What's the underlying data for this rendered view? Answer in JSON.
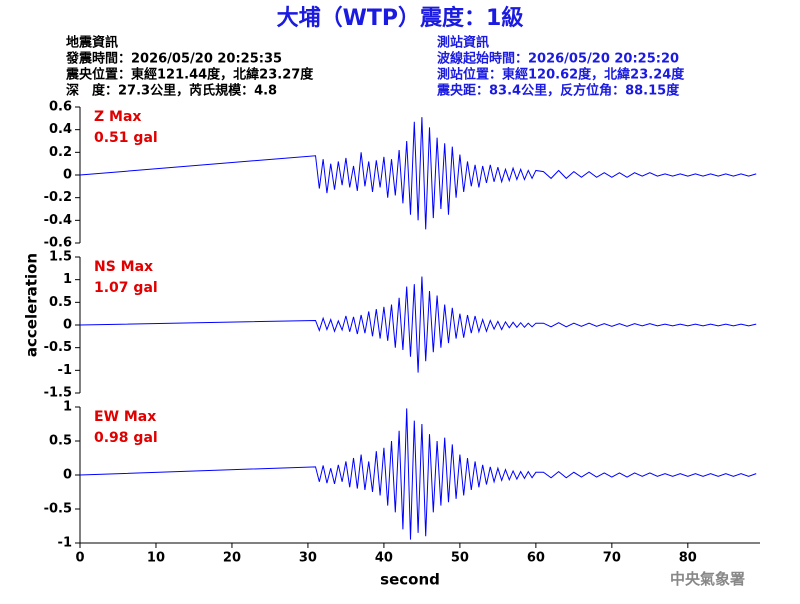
{
  "title": "大埔（WTP）震度：1級",
  "info_left": [
    "地震資訊",
    "發震時間：2026/05/20 20:25:35",
    "震央位置：東經121.44度，北緯23.27度",
    "深　度：27.3公里，芮氏規模：4.8"
  ],
  "info_right": [
    "測站資訊",
    "波線起始時間：2026/05/20 20:25:20",
    "測站位置：東經120.62度，北緯23.24度",
    "震央距：83.4公里，反方位角：88.15度"
  ],
  "footer": "中央氣象署",
  "chart_data": [
    {
      "type": "line",
      "label": "Z Max",
      "max_label": "0.51 gal",
      "color": "#0000ff",
      "label_color": "#e00000",
      "xlim": [
        0,
        89.5
      ],
      "ylim": [
        -0.6,
        0.6
      ],
      "yticks": [
        -0.6,
        -0.4,
        -0.2,
        0,
        0.2,
        0.4,
        0.6
      ],
      "x": [
        0,
        31,
        31.5,
        32,
        32.5,
        33,
        33.5,
        34,
        34.5,
        35,
        35.5,
        36,
        36.5,
        37,
        37.5,
        38,
        38.5,
        39,
        39.5,
        40,
        40.5,
        41,
        41.5,
        42,
        42.5,
        43,
        43.5,
        44,
        44.5,
        45,
        45.5,
        46,
        46.5,
        47,
        47.5,
        48,
        48.5,
        49,
        49.5,
        50,
        50.5,
        51,
        51.5,
        52,
        52.5,
        53,
        53.5,
        54,
        54.5,
        55,
        55.5,
        56,
        56.5,
        57,
        57.5,
        58,
        58.5,
        59,
        59.5,
        60,
        61,
        62,
        63,
        64,
        65,
        66,
        67,
        68,
        69,
        70,
        71,
        72,
        73,
        74,
        75,
        76,
        77,
        78,
        79,
        80,
        81,
        82,
        83,
        84,
        85,
        86,
        87,
        88,
        89
      ],
      "values": [
        0,
        0.17,
        -0.12,
        0.14,
        -0.16,
        0.1,
        -0.13,
        0.12,
        -0.09,
        0.15,
        -0.11,
        0.08,
        -0.14,
        0.2,
        -0.1,
        0.12,
        -0.15,
        0.13,
        -0.11,
        0.16,
        -0.2,
        0.14,
        -0.18,
        0.22,
        -0.25,
        0.3,
        -0.35,
        0.47,
        -0.4,
        0.51,
        -0.48,
        0.42,
        -0.38,
        0.33,
        -0.3,
        0.28,
        -0.35,
        0.25,
        -0.2,
        0.18,
        -0.15,
        0.12,
        -0.1,
        0.09,
        -0.11,
        0.08,
        -0.07,
        0.09,
        -0.06,
        0.07,
        -0.06,
        0.05,
        -0.05,
        0.06,
        -0.04,
        0.05,
        -0.04,
        0.04,
        -0.03,
        0.04,
        0.03,
        -0.03,
        0.04,
        -0.03,
        0.03,
        -0.02,
        0.03,
        -0.02,
        0.02,
        -0.02,
        0.02,
        -0.02,
        0.02,
        -0.01,
        0.02,
        -0.01,
        0.01,
        -0.01,
        0.01,
        -0.01,
        0.01,
        -0.01,
        0.01,
        -0.01,
        0.01,
        -0.01,
        0.01,
        -0.01,
        0.01
      ]
    },
    {
      "type": "line",
      "label": "NS Max",
      "max_label": "1.07 gal",
      "color": "#0000ff",
      "label_color": "#e00000",
      "ylabel": "acceleration",
      "xlim": [
        0,
        89.5
      ],
      "ylim": [
        -1.5,
        1.5
      ],
      "yticks": [
        -1.5,
        -1,
        -0.5,
        0,
        0.5,
        1,
        1.5
      ],
      "x": [
        0,
        31,
        31.5,
        32,
        32.5,
        33,
        33.5,
        34,
        34.5,
        35,
        35.5,
        36,
        36.5,
        37,
        37.5,
        38,
        38.5,
        39,
        39.5,
        40,
        40.5,
        41,
        41.5,
        42,
        42.5,
        43,
        43.5,
        44,
        44.5,
        45,
        45.5,
        46,
        46.5,
        47,
        47.5,
        48,
        48.5,
        49,
        49.5,
        50,
        50.5,
        51,
        51.5,
        52,
        52.5,
        53,
        53.5,
        54,
        54.5,
        55,
        55.5,
        56,
        56.5,
        57,
        57.5,
        58,
        58.5,
        59,
        59.5,
        60,
        61,
        62,
        63,
        64,
        65,
        66,
        67,
        68,
        69,
        70,
        71,
        72,
        73,
        74,
        75,
        76,
        77,
        78,
        79,
        80,
        81,
        82,
        83,
        84,
        85,
        86,
        87,
        88,
        89
      ],
      "values": [
        0,
        0.1,
        -0.12,
        0.15,
        -0.1,
        0.12,
        -0.14,
        0.09,
        -0.11,
        0.2,
        -0.15,
        0.18,
        -0.2,
        0.22,
        -0.18,
        0.3,
        -0.25,
        0.35,
        -0.3,
        0.4,
        -0.35,
        0.45,
        -0.5,
        0.6,
        -0.55,
        0.85,
        -0.7,
        0.9,
        -1.05,
        1.07,
        -0.8,
        0.75,
        -0.6,
        0.65,
        -0.5,
        0.45,
        -0.4,
        0.38,
        -0.3,
        0.25,
        -0.28,
        0.22,
        -0.18,
        0.2,
        -0.15,
        0.12,
        -0.14,
        0.1,
        -0.09,
        0.08,
        -0.1,
        0.07,
        -0.06,
        0.06,
        -0.05,
        0.05,
        -0.05,
        0.04,
        -0.04,
        0.04,
        0.04,
        -0.04,
        0.05,
        -0.04,
        0.04,
        -0.03,
        0.04,
        -0.03,
        0.03,
        -0.03,
        0.03,
        -0.03,
        0.03,
        -0.02,
        0.03,
        -0.02,
        0.02,
        -0.02,
        0.02,
        -0.02,
        0.02,
        -0.02,
        0.02,
        -0.02,
        0.02,
        -0.02,
        0.02,
        -0.02,
        0.02
      ]
    },
    {
      "type": "line",
      "label": "EW Max",
      "max_label": "0.98 gal",
      "color": "#0000ff",
      "label_color": "#e00000",
      "xlabel": "second",
      "xlim": [
        0,
        89.5
      ],
      "xticks": [
        0,
        10,
        20,
        30,
        40,
        50,
        60,
        70,
        80
      ],
      "ylim": [
        -1,
        1
      ],
      "yticks": [
        -1,
        -0.5,
        0,
        0.5,
        1
      ],
      "x": [
        0,
        31,
        31.5,
        32,
        32.5,
        33,
        33.5,
        34,
        34.5,
        35,
        35.5,
        36,
        36.5,
        37,
        37.5,
        38,
        38.5,
        39,
        39.5,
        40,
        40.5,
        41,
        41.5,
        42,
        42.5,
        43,
        43.5,
        44,
        44.5,
        45,
        45.5,
        46,
        46.5,
        47,
        47.5,
        48,
        48.5,
        49,
        49.5,
        50,
        50.5,
        51,
        51.5,
        52,
        52.5,
        53,
        53.5,
        54,
        54.5,
        55,
        55.5,
        56,
        56.5,
        57,
        57.5,
        58,
        58.5,
        59,
        59.5,
        60,
        61,
        62,
        63,
        64,
        65,
        66,
        67,
        68,
        69,
        70,
        71,
        72,
        73,
        74,
        75,
        76,
        77,
        78,
        79,
        80,
        81,
        82,
        83,
        84,
        85,
        86,
        87,
        88,
        89
      ],
      "values": [
        0,
        0.12,
        -0.1,
        0.14,
        -0.12,
        0.1,
        -0.13,
        0.15,
        -0.1,
        0.2,
        -0.18,
        0.25,
        -0.2,
        0.3,
        -0.22,
        0.2,
        -0.25,
        0.35,
        -0.3,
        0.4,
        -0.45,
        0.5,
        -0.55,
        0.65,
        -0.8,
        0.98,
        -0.95,
        0.8,
        -0.85,
        0.75,
        -0.9,
        0.6,
        -0.55,
        0.5,
        -0.45,
        0.55,
        -0.4,
        0.45,
        -0.35,
        0.3,
        -0.3,
        0.25,
        -0.22,
        0.2,
        -0.18,
        0.15,
        -0.14,
        0.12,
        -0.1,
        0.1,
        -0.08,
        0.08,
        -0.07,
        0.06,
        -0.06,
        0.05,
        -0.05,
        0.05,
        -0.04,
        0.04,
        0.04,
        -0.04,
        0.05,
        -0.04,
        0.04,
        -0.03,
        0.04,
        -0.03,
        0.03,
        -0.03,
        0.03,
        -0.03,
        0.03,
        -0.02,
        0.03,
        -0.02,
        0.02,
        -0.02,
        0.02,
        -0.02,
        0.02,
        -0.02,
        0.02,
        -0.02,
        0.02,
        -0.02,
        0.02,
        -0.02,
        0.02
      ]
    }
  ]
}
